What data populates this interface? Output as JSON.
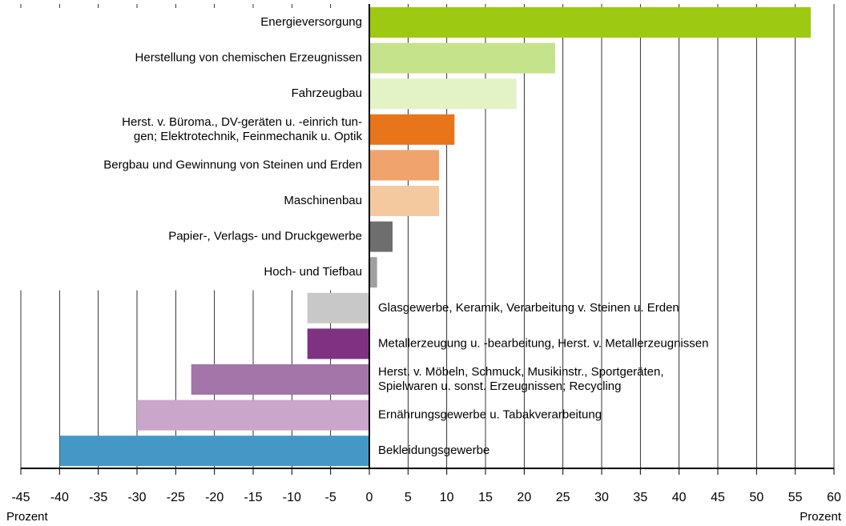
{
  "chart_data": {
    "type": "bar",
    "orientation": "horizontal",
    "categories": [
      "Energieversorgung",
      "Herstellung von chemischen Erzeugnissen",
      "Fahrzeugbau",
      "Herst. v. Büroma., DV-geräten u. -einrich tun-\ngen; Elektrotechnik, Feinmechanik u. Optik",
      "Bergbau und Gewinnung von Steinen und Erden",
      "Maschinenbau",
      "Papier-,  Verlags- und Druckgewerbe",
      "Hoch- und Tiefbau",
      "Glasgewerbe, Keramik, Verarbeitung v. Steinen u. Erden",
      "Metallerzeugung u. -bearbeitung, Herst. v. Metallerzeugnissen",
      "Herst. v. Möbeln, Schmuck, Musikinstr., Sportgeräten,\nSpielwaren u. sonst. Erzeugnissen; Recycling",
      "Ernährungsgewerbe u. Tabakverarbeitung",
      "Bekleidungsgewerbe"
    ],
    "values": [
      57,
      24,
      19,
      11,
      9,
      9,
      3,
      1,
      -8,
      -8,
      -23,
      -30,
      -40
    ],
    "colors": [
      "#9dc913",
      "#c5e38a",
      "#e3f3c5",
      "#e8751a",
      "#f0a46b",
      "#f5c9a0",
      "#6e6e6e",
      "#a0a0a0",
      "#c8c8c8",
      "#7f3282",
      "#a375a8",
      "#c9a6ca",
      "#4597c6"
    ],
    "xlabel": "Prozent",
    "xlim": [
      -45,
      60
    ],
    "xticks": [
      -45,
      -40,
      -35,
      -30,
      -25,
      -20,
      -15,
      -10,
      -5,
      0,
      5,
      10,
      15,
      20,
      25,
      30,
      35,
      40,
      45,
      50,
      55,
      60
    ],
    "grid": true
  }
}
